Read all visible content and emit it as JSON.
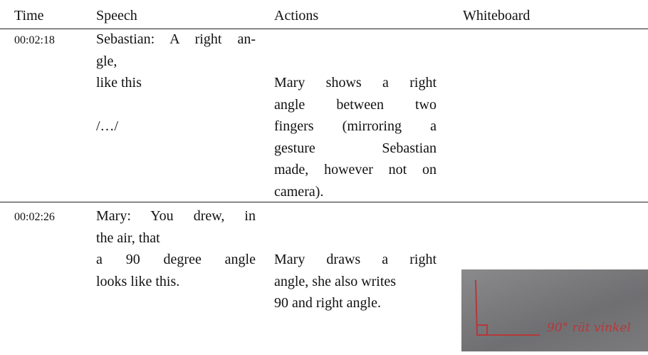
{
  "table": {
    "headers": [
      "Time",
      "Speech",
      "Actions",
      "Whiteboard"
    ],
    "rows": [
      {
        "time": "00:02:18",
        "speech": [
          "Sebastian: A right an-",
          "gle,",
          "like this",
          "/…/"
        ],
        "actions": [
          "Mary shows a right",
          "angle between two",
          "fingers (mirroring a",
          "gesture Sebastian",
          "made, however not on",
          "camera)."
        ]
      },
      {
        "time": "00:02:26",
        "speech": [
          "Mary: You drew, in",
          "the air, that",
          "a 90 degree angle",
          "looks like this."
        ],
        "actions": [
          "Mary draws a right",
          "angle, she also writes",
          "90 and right angle."
        ],
        "whiteboard": "90° rät vinkel"
      }
    ]
  }
}
